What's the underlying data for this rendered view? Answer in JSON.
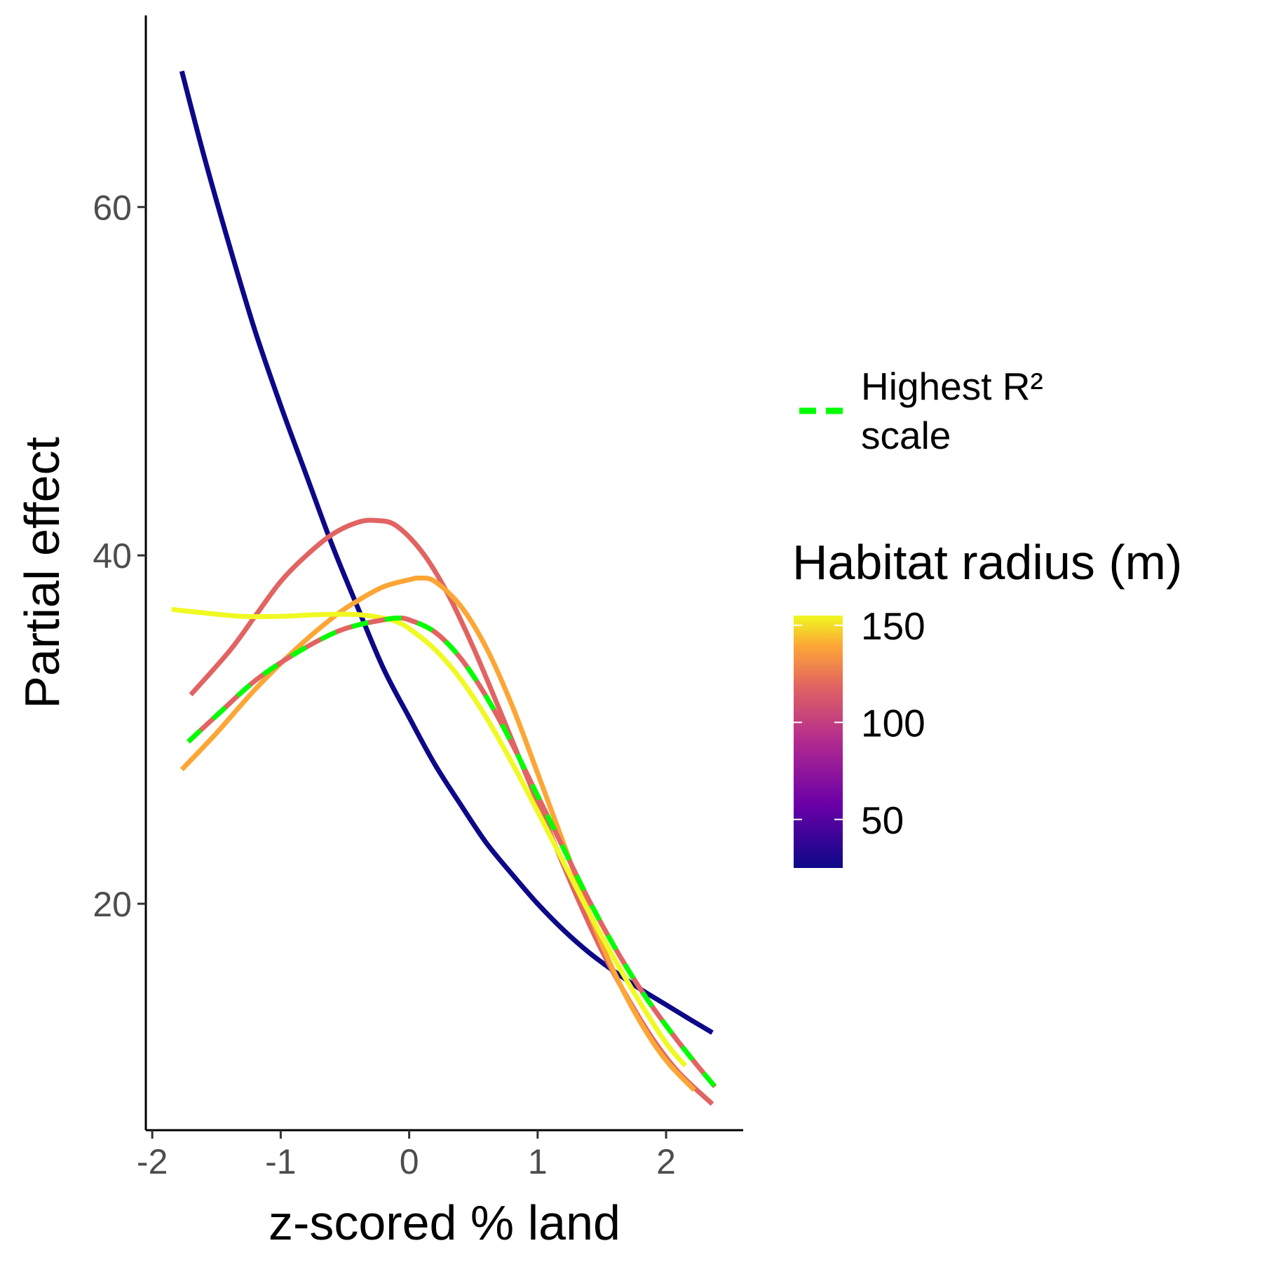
{
  "chart_data": {
    "type": "line",
    "xlabel": "z-scored % land",
    "ylabel": "Partial effect",
    "xlim": [
      -2.05,
      2.6
    ],
    "ylim": [
      7,
      71
    ],
    "xticks": [
      -2,
      -1,
      0,
      1,
      2
    ],
    "yticks": [
      20,
      40,
      60
    ],
    "x_tick_labels": [
      "-2",
      "-1",
      "0",
      "1",
      "2"
    ],
    "y_tick_labels": [
      "20",
      "40",
      "60"
    ],
    "grid": false,
    "legend_placement": "right",
    "series": [
      {
        "radius_m": 25,
        "color": "#0d0887",
        "x": [
          -1.77,
          -1.6,
          -1.4,
          -1.2,
          -1.0,
          -0.8,
          -0.6,
          -0.4,
          -0.2,
          0.0,
          0.2,
          0.4,
          0.6,
          0.8,
          1.0,
          1.2,
          1.4,
          1.6,
          1.8,
          2.0,
          2.2,
          2.36
        ],
        "y": [
          67.8,
          63.0,
          57.8,
          52.9,
          48.6,
          44.6,
          40.6,
          37.0,
          33.5,
          30.7,
          28.0,
          25.7,
          23.5,
          21.7,
          20.0,
          18.5,
          17.2,
          16.1,
          15.1,
          14.2,
          13.3,
          12.6
        ]
      },
      {
        "radius_m": 100,
        "color": "#e16462",
        "x": [
          -1.7,
          -1.4,
          -1.2,
          -1.0,
          -0.8,
          -0.6,
          -0.4,
          -0.25,
          -0.1,
          0.1,
          0.3,
          0.5,
          0.7,
          0.9,
          1.1,
          1.3,
          1.5,
          1.7,
          1.9,
          2.1,
          2.36
        ],
        "y": [
          32.0,
          34.5,
          36.5,
          38.5,
          40.0,
          41.2,
          41.9,
          42.0,
          41.7,
          40.2,
          37.8,
          34.7,
          31.2,
          27.6,
          24.0,
          20.5,
          17.3,
          14.6,
          12.2,
          10.3,
          8.5
        ]
      },
      {
        "radius_m": 125,
        "color": "#fca636",
        "x": [
          -1.77,
          -1.5,
          -1.2,
          -0.9,
          -0.6,
          -0.4,
          -0.2,
          0.0,
          0.08,
          0.2,
          0.4,
          0.6,
          0.8,
          1.0,
          1.2,
          1.4,
          1.6,
          1.8,
          2.0,
          2.22
        ],
        "y": [
          27.7,
          29.8,
          32.3,
          34.5,
          36.4,
          37.4,
          38.2,
          38.6,
          38.7,
          38.5,
          37.1,
          34.7,
          31.4,
          27.5,
          23.5,
          19.5,
          16.0,
          13.2,
          11.0,
          9.3
        ]
      },
      {
        "radius_m": 150,
        "color": "#f0f921",
        "x": [
          -1.85,
          -1.6,
          -1.3,
          -1.0,
          -0.7,
          -0.4,
          -0.2,
          -0.1,
          0.0,
          0.2,
          0.4,
          0.6,
          0.8,
          1.0,
          1.2,
          1.4,
          1.6,
          1.8,
          2.0,
          2.15
        ],
        "y": [
          36.9,
          36.7,
          36.5,
          36.5,
          36.6,
          36.6,
          36.4,
          36.2,
          35.8,
          34.6,
          32.9,
          30.7,
          28.1,
          25.3,
          22.4,
          19.5,
          16.8,
          14.3,
          12.0,
          10.7
        ]
      },
      {
        "radius_m": 100,
        "color": "#e16462",
        "highest_r2": true,
        "x": [
          -1.72,
          -1.5,
          -1.2,
          -0.9,
          -0.6,
          -0.4,
          -0.2,
          -0.1,
          0.0,
          0.2,
          0.4,
          0.6,
          0.8,
          1.0,
          1.2,
          1.4,
          1.6,
          1.8,
          2.0,
          2.2,
          2.38
        ],
        "y": [
          29.3,
          30.8,
          32.8,
          34.3,
          35.5,
          36.0,
          36.3,
          36.4,
          36.3,
          35.6,
          34.1,
          31.9,
          29.2,
          26.2,
          23.2,
          20.2,
          17.5,
          15.1,
          13.0,
          11.1,
          9.5
        ]
      }
    ],
    "legend": {
      "line_label": "Highest R² scale",
      "line_label_lines": [
        "Highest R²",
        "scale"
      ],
      "line_color": "#00ff00",
      "colorbar_title": "Habitat radius (m)",
      "colorbar_ticks": [
        50,
        100,
        150
      ],
      "colorbar_tick_labels": [
        "50",
        "100",
        "150"
      ],
      "colorbar_range": [
        25,
        155
      ],
      "palette": "plasma"
    }
  }
}
